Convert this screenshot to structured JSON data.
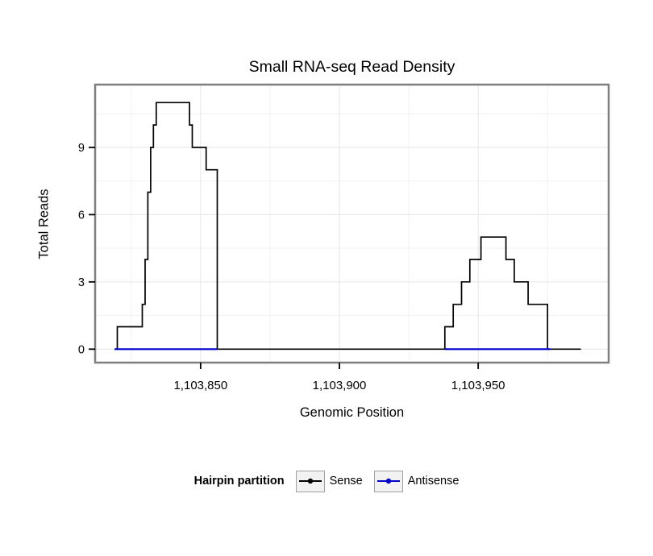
{
  "chart_data": {
    "type": "line",
    "title": "Small RNA-seq Read Density",
    "xlabel": "Genomic Position",
    "ylabel": "Total Reads",
    "xlim": [
      1103812,
      1103997
    ],
    "ylim": [
      -0.6,
      11.8
    ],
    "xticks": [
      1103850,
      1103900,
      1103950
    ],
    "xtick_labels": [
      "1,103,850",
      "1,103,900",
      "1,103,950"
    ],
    "xticks_minor": [
      1103825,
      1103875,
      1103925,
      1103975
    ],
    "yticks": [
      0,
      3,
      6,
      9
    ],
    "ytick_labels": [
      "0",
      "3",
      "6",
      "9"
    ],
    "yticks_minor": [
      1.5,
      4.5,
      7.5,
      10.5
    ],
    "grid": true,
    "legend": {
      "title": "Hairpin partition",
      "position": "bottom",
      "entries": [
        {
          "label": "Sense",
          "color": "#000000"
        },
        {
          "label": "Antisense",
          "color": "#0000CC"
        }
      ]
    },
    "colors": {
      "panel_border": "#7f7f7f",
      "grid_major": "#e4e4e4",
      "grid_minor": "#f2f2f2",
      "background": "#ffffff",
      "tick": "#000000"
    },
    "series": [
      {
        "name": "Sense",
        "color": "#000000",
        "render": "step",
        "points": [
          [
            1103819,
            0
          ],
          [
            1103820,
            1
          ],
          [
            1103829,
            2
          ],
          [
            1103830,
            4
          ],
          [
            1103831,
            7
          ],
          [
            1103832,
            9
          ],
          [
            1103833,
            10
          ],
          [
            1103834,
            11
          ],
          [
            1103846,
            10
          ],
          [
            1103847,
            9
          ],
          [
            1103852,
            8
          ],
          [
            1103856,
            0
          ],
          [
            1103938,
            1
          ],
          [
            1103941,
            2
          ],
          [
            1103944,
            3
          ],
          [
            1103947,
            4
          ],
          [
            1103951,
            5
          ],
          [
            1103960,
            4
          ],
          [
            1103963,
            3
          ],
          [
            1103968,
            2
          ],
          [
            1103975,
            0
          ],
          [
            1103987,
            0
          ]
        ]
      },
      {
        "name": "Antisense",
        "color": "#0000CC",
        "render": "segments",
        "segments": [
          {
            "x1": 1103819,
            "x2": 1103856,
            "y": 0
          },
          {
            "x1": 1103938,
            "x2": 1103976,
            "y": 0
          }
        ]
      }
    ]
  }
}
